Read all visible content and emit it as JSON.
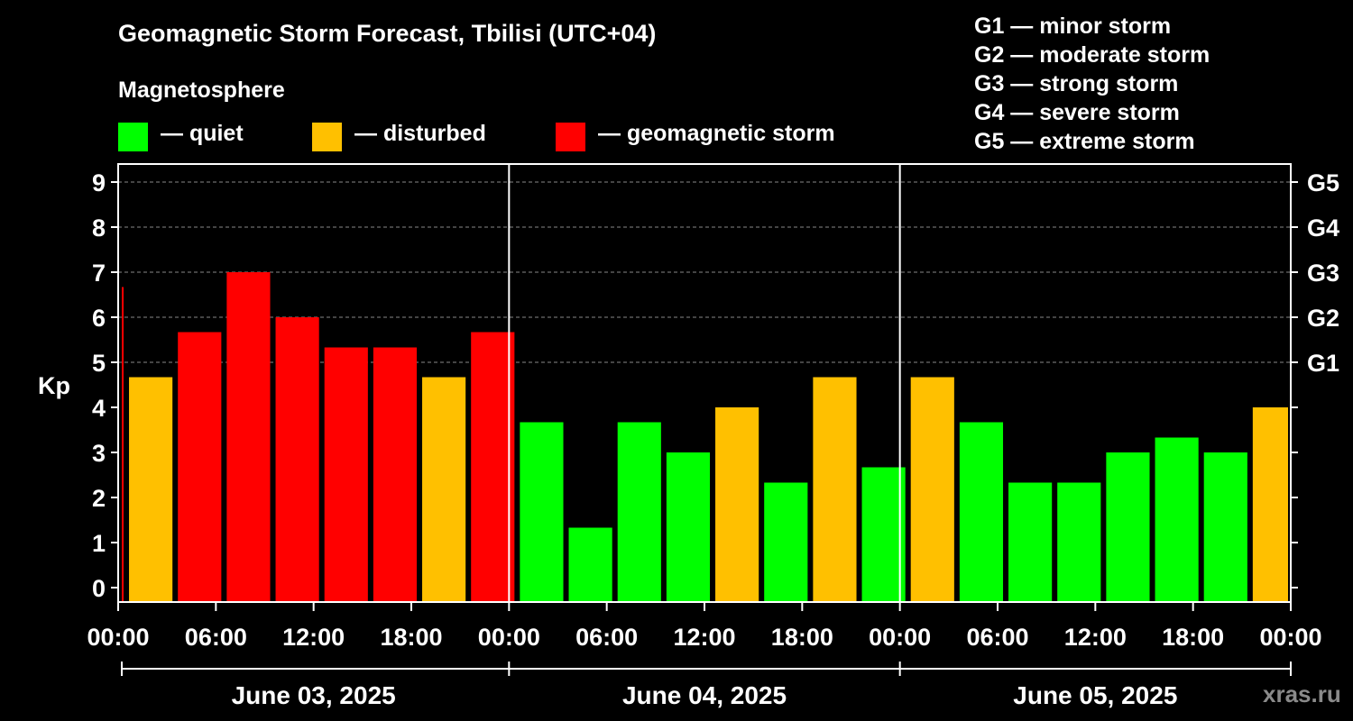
{
  "title": "Geomagnetic Storm Forecast, Tbilisi (UTC+04)",
  "subtitle": "Magnetosphere",
  "legend": [
    {
      "label": "— quiet",
      "color": "#00ff00"
    },
    {
      "label": "— disturbed",
      "color": "#ffc000"
    },
    {
      "label": "— geomagnetic storm",
      "color": "#ff0000"
    }
  ],
  "g_scale_legend": [
    "G1 — minor storm",
    "G2 — moderate storm",
    "G3 — strong storm",
    "G4 — severe storm",
    "G5 — extreme storm"
  ],
  "watermark": "xras.ru",
  "chart_data": {
    "type": "bar",
    "ylabel": "Kp",
    "ylim": [
      0,
      9
    ],
    "y_ticks": [
      "0",
      "1",
      "2",
      "3",
      "4",
      "5",
      "6",
      "7",
      "8",
      "9"
    ],
    "right_axis_labels": [
      {
        "kp": 5,
        "label": "G1"
      },
      {
        "kp": 6,
        "label": "G2"
      },
      {
        "kp": 7,
        "label": "G3"
      },
      {
        "kp": 8,
        "label": "G4"
      },
      {
        "kp": 9,
        "label": "G5"
      }
    ],
    "x_tick_labels": [
      "00:00",
      "06:00",
      "12:00",
      "18:00",
      "00:00",
      "06:00",
      "12:00",
      "18:00",
      "00:00",
      "06:00",
      "12:00",
      "18:00",
      "00:00"
    ],
    "days": [
      "June 03, 2025",
      "June 04, 2025",
      "June 05, 2025"
    ],
    "grid": true,
    "thresholds": {
      "disturbed_from": 4,
      "storm_from": 5
    },
    "colors": {
      "quiet": "#00ff00",
      "disturbed": "#ffc000",
      "storm": "#ff0000"
    },
    "bars": [
      {
        "start": "June 03 00:00",
        "end": "June 03 00:30",
        "kp": 6.67,
        "status": "storm"
      },
      {
        "start": "June 03 00:30",
        "end": "June 03 03:30",
        "kp": 4.67,
        "status": "disturbed"
      },
      {
        "start": "June 03 03:30",
        "end": "June 03 06:30",
        "kp": 5.67,
        "status": "storm"
      },
      {
        "start": "June 03 06:30",
        "end": "June 03 09:30",
        "kp": 7.0,
        "status": "storm"
      },
      {
        "start": "June 03 09:30",
        "end": "June 03 12:30",
        "kp": 6.0,
        "status": "storm"
      },
      {
        "start": "June 03 12:30",
        "end": "June 03 15:30",
        "kp": 5.33,
        "status": "storm"
      },
      {
        "start": "June 03 15:30",
        "end": "June 03 18:30",
        "kp": 5.33,
        "status": "storm"
      },
      {
        "start": "June 03 18:30",
        "end": "June 03 21:30",
        "kp": 4.67,
        "status": "disturbed"
      },
      {
        "start": "June 03 21:30",
        "end": "June 04 00:30",
        "kp": 5.67,
        "status": "storm"
      },
      {
        "start": "June 04 00:30",
        "end": "June 04 03:30",
        "kp": 3.67,
        "status": "quiet"
      },
      {
        "start": "June 04 03:30",
        "end": "June 04 06:30",
        "kp": 1.33,
        "status": "quiet"
      },
      {
        "start": "June 04 06:30",
        "end": "June 04 09:30",
        "kp": 3.67,
        "status": "quiet"
      },
      {
        "start": "June 04 09:30",
        "end": "June 04 12:30",
        "kp": 3.0,
        "status": "quiet"
      },
      {
        "start": "June 04 12:30",
        "end": "June 04 15:30",
        "kp": 4.0,
        "status": "disturbed"
      },
      {
        "start": "June 04 15:30",
        "end": "June 04 18:30",
        "kp": 2.33,
        "status": "quiet"
      },
      {
        "start": "June 04 18:30",
        "end": "June 04 21:30",
        "kp": 4.67,
        "status": "disturbed"
      },
      {
        "start": "June 04 21:30",
        "end": "June 05 00:30",
        "kp": 2.67,
        "status": "quiet"
      },
      {
        "start": "June 05 00:30",
        "end": "June 05 03:30",
        "kp": 4.67,
        "status": "disturbed"
      },
      {
        "start": "June 05 03:30",
        "end": "June 05 06:30",
        "kp": 3.67,
        "status": "quiet"
      },
      {
        "start": "June 05 06:30",
        "end": "June 05 09:30",
        "kp": 2.33,
        "status": "quiet"
      },
      {
        "start": "June 05 09:30",
        "end": "June 05 12:30",
        "kp": 2.33,
        "status": "quiet"
      },
      {
        "start": "June 05 12:30",
        "end": "June 05 15:30",
        "kp": 3.0,
        "status": "quiet"
      },
      {
        "start": "June 05 15:30",
        "end": "June 05 18:30",
        "kp": 3.33,
        "status": "quiet"
      },
      {
        "start": "June 05 18:30",
        "end": "June 05 21:30",
        "kp": 3.0,
        "status": "quiet"
      },
      {
        "start": "June 05 21:30",
        "end": "June 06 00:00",
        "kp": 4.0,
        "status": "disturbed"
      }
    ]
  }
}
